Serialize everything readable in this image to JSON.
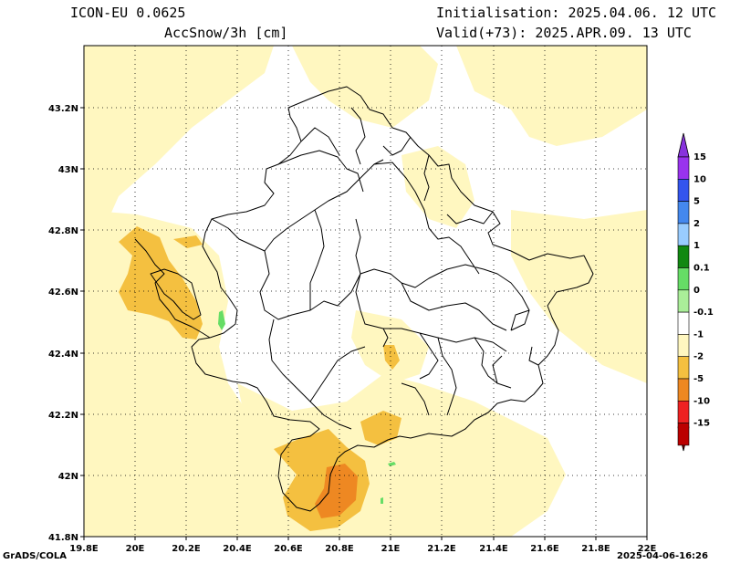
{
  "header": {
    "model": "ICON-EU 0.0625",
    "variable": "AccSnow/3h [cm]",
    "init": "Initialisation: 2025.04.06. 12 UTC",
    "valid": "Valid(+73): 2025.APR.09. 13 UTC"
  },
  "footer": {
    "left": "GrADS/COLA",
    "right": "2025-04-06-16:26"
  },
  "map": {
    "x_ticks": [
      "19.8E",
      "20E",
      "20.2E",
      "20.4E",
      "20.6E",
      "20.8E",
      "21E",
      "21.2E",
      "21.4E",
      "21.6E",
      "21.8E",
      "22E"
    ],
    "y_ticks": [
      "41.8N",
      "42N",
      "42.2N",
      "42.4N",
      "42.6N",
      "42.8N",
      "43N",
      "43.2N"
    ]
  },
  "colorbar": {
    "entries": [
      {
        "label": "15",
        "color": "#9933ee"
      },
      {
        "label": "10",
        "color": "#3355ee"
      },
      {
        "label": "5",
        "color": "#4488ee"
      },
      {
        "label": "2",
        "color": "#99ccff"
      },
      {
        "label": "1",
        "color": "#118811"
      },
      {
        "label": "0.1",
        "color": "#66dd66"
      },
      {
        "label": "0",
        "color": "#aaee99"
      },
      {
        "label": "-0.1",
        "color": "#ffffff"
      },
      {
        "label": "-1",
        "color": "#fff7c0"
      },
      {
        "label": "-2",
        "color": "#f4c040"
      },
      {
        "label": "-5",
        "color": "#ee8822"
      },
      {
        "label": "-10",
        "color": "#ee2222"
      },
      {
        "label": "-15",
        "color": "#bb0000"
      }
    ],
    "end_colors": {
      "top": "#8833dd",
      "bottom": "#880000"
    }
  },
  "colors": {
    "light_yellow": "#fff7c0",
    "gold": "#f4c040",
    "orange": "#ee8822",
    "green": "#66dd66"
  }
}
